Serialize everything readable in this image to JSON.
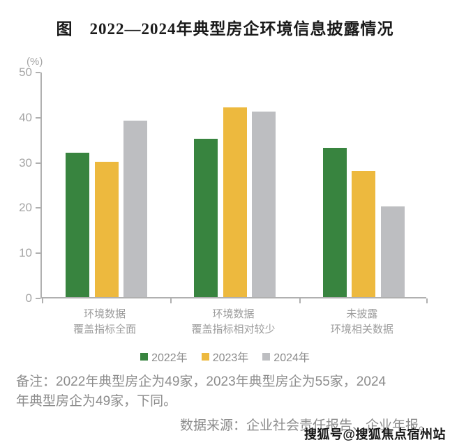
{
  "chart_data": {
    "type": "bar",
    "title": "图　2022—2024年典型房企环境信息披露情况",
    "unit_label": "(%)",
    "categories": [
      "环境数据\n覆盖指标全面",
      "环境数据\n覆盖指标相对较少",
      "未披露\n环境相关数据"
    ],
    "series": [
      {
        "name": "2022年",
        "color": "#38843F",
        "values": [
          32,
          35,
          33
        ]
      },
      {
        "name": "2023年",
        "color": "#EDB93E",
        "values": [
          30,
          42,
          28
        ]
      },
      {
        "name": "2024年",
        "color": "#BDBEC1",
        "values": [
          39,
          41,
          20
        ]
      }
    ],
    "ylim": [
      0,
      50
    ],
    "yticks": [
      0,
      10,
      20,
      30,
      40,
      50
    ],
    "grid": false,
    "legend_position": "bottom"
  },
  "note": {
    "line1": "备注：2022年典型房企为49家，2023年典型房企为55家，2024",
    "line2": "年典型房企为49家，下同。"
  },
  "source": "数据来源：企业社会责任报告、企业年报。",
  "watermark": "搜狐号@搜狐焦点宿州站",
  "colors": {
    "axis": "#B0B0B0",
    "tick_text": "#A5A5A5",
    "category_text": "#9C9C9C",
    "legend_text": "#8C8C8C",
    "note_text": "#8C8C8C",
    "title_text": "#1A1A1A"
  }
}
